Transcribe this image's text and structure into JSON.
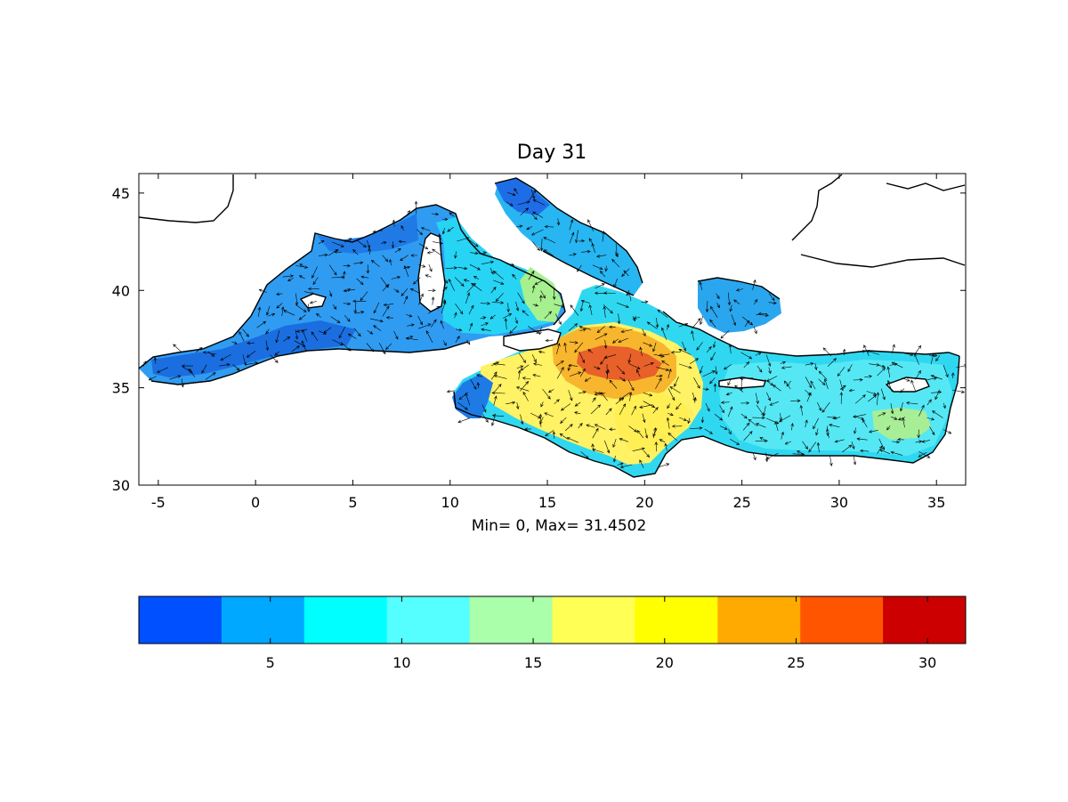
{
  "title": "Day 31",
  "stats_label": "Min= 0,  Max= 31.4502",
  "map": {
    "x_ticks": [
      "-5",
      "0",
      "5",
      "10",
      "15",
      "20",
      "25",
      "30",
      "35"
    ],
    "x_tick_values": [
      -5,
      0,
      5,
      10,
      15,
      20,
      25,
      30,
      35
    ],
    "y_ticks": [
      "45",
      "40",
      "35",
      "30"
    ],
    "y_tick_values": [
      45,
      40,
      35,
      30
    ],
    "xlim": [
      -6,
      36.5
    ],
    "ylim": [
      30,
      46
    ],
    "land_color": "#ffffff",
    "coast_color": "#000000",
    "arrow_color": "#000000"
  },
  "colorbar": {
    "range": [
      0,
      31.4502
    ],
    "colors": [
      "#0050ff",
      "#00a8ff",
      "#00ffff",
      "#55ffff",
      "#aaffaa",
      "#ffff55",
      "#ffff00",
      "#ffaa00",
      "#ff5500",
      "#cc0000"
    ],
    "tick_labels": [
      "5",
      "10",
      "15",
      "20",
      "25",
      "30"
    ],
    "tick_values": [
      5,
      10,
      15,
      20,
      25,
      30
    ]
  }
}
